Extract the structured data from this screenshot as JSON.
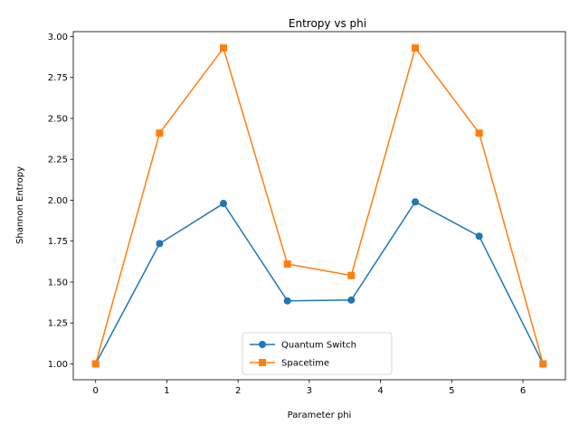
{
  "chart_data": {
    "type": "line",
    "title": "Entropy vs phi",
    "xlabel": "Parameter phi",
    "ylabel": "Shannon Entropy",
    "xlim": [
      -0.314,
      6.597
    ],
    "ylim": [
      0.903,
      3.03
    ],
    "xticks": [
      0,
      1,
      2,
      3,
      4,
      5,
      6
    ],
    "xtick_labels": [
      "0",
      "1",
      "2",
      "3",
      "4",
      "5",
      "6"
    ],
    "yticks": [
      1.0,
      1.25,
      1.5,
      1.75,
      2.0,
      2.25,
      2.5,
      2.75,
      3.0
    ],
    "ytick_labels": [
      "1.00",
      "1.25",
      "1.50",
      "1.75",
      "2.00",
      "2.25",
      "2.50",
      "2.75",
      "3.00"
    ],
    "grid": false,
    "legend_position": "bottom-center",
    "x": [
      0,
      0.898,
      1.795,
      2.693,
      3.59,
      4.488,
      5.386,
      6.283
    ],
    "series": [
      {
        "name": "Quantum Switch",
        "values": [
          1.0,
          1.735,
          1.98,
          1.385,
          1.39,
          1.99,
          1.78,
          1.0
        ],
        "color": "#1f77b4",
        "marker": "circle"
      },
      {
        "name": "Spacetime",
        "values": [
          1.0,
          2.41,
          2.93,
          1.61,
          1.54,
          2.93,
          2.41,
          1.0
        ],
        "color": "#ff7f0e",
        "marker": "square"
      }
    ]
  }
}
